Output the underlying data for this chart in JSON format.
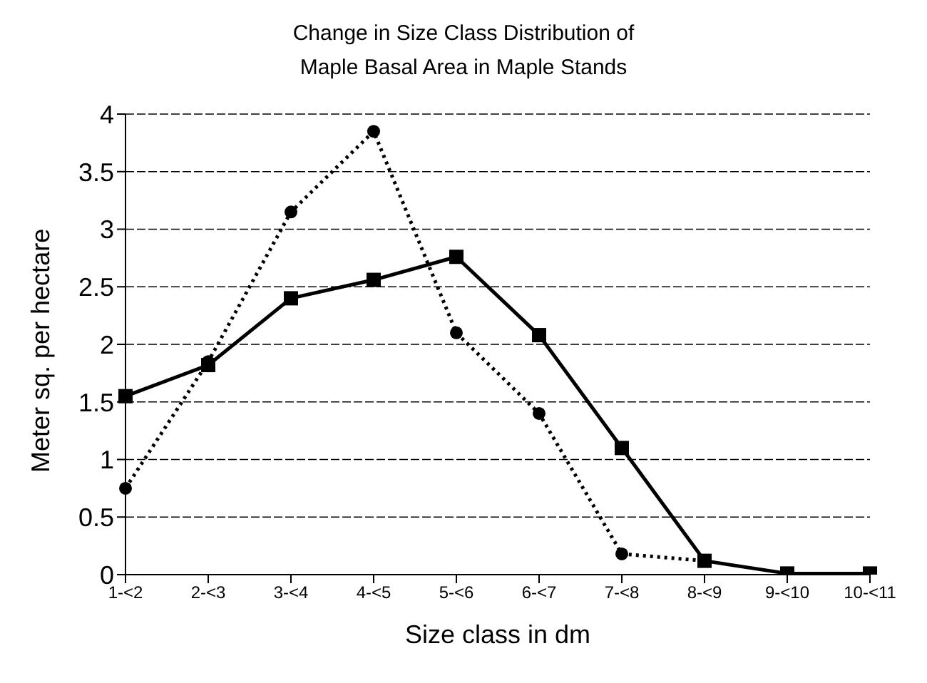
{
  "chart_data": {
    "type": "line",
    "title": "Change in Size Class Distribution of\nMaple Basal Area in Maple Stands",
    "xlabel": "Size class in dm",
    "ylabel": "Meter sq. per hectare",
    "categories": [
      "1-<2",
      "2-<3",
      "3-<4",
      "4-<5",
      "5-<6",
      "6-<7",
      "7-<8",
      "8-<9",
      "9-<10",
      "10-<11"
    ],
    "series": [
      {
        "color": "#000000",
        "marker": "square",
        "line_style": "solid",
        "values": [
          1.55,
          1.82,
          2.4,
          2.56,
          2.76,
          2.08,
          1.1,
          0.12,
          0.01,
          0.01
        ]
      },
      {
        "color": "#000000",
        "marker": "circle",
        "line_style": "dotted",
        "values": [
          0.75,
          1.85,
          3.15,
          3.85,
          2.1,
          1.4,
          0.18,
          0.12,
          null,
          null
        ]
      }
    ],
    "ylim": [
      0,
      4
    ],
    "yticks": [
      0,
      0.5,
      1,
      1.5,
      2,
      2.5,
      3,
      3.5,
      4
    ],
    "grid": "y"
  }
}
